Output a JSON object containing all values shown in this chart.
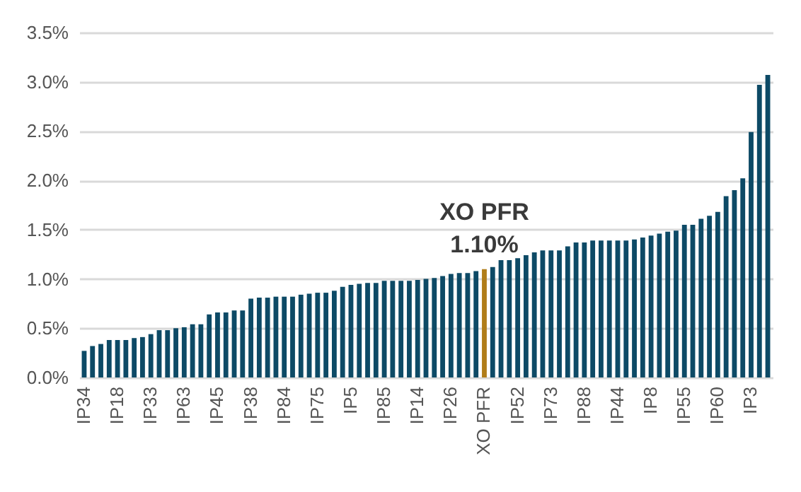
{
  "chart_data": {
    "type": "bar",
    "categories": [
      "IP34",
      null,
      null,
      null,
      "IP18",
      null,
      null,
      null,
      "IP33",
      null,
      null,
      null,
      "IP63",
      null,
      null,
      null,
      "IP45",
      null,
      null,
      null,
      "IP38",
      null,
      null,
      null,
      "IP84",
      null,
      null,
      null,
      "IP75",
      null,
      null,
      null,
      "IP5",
      null,
      null,
      null,
      "IP85",
      null,
      null,
      null,
      "IP14",
      null,
      null,
      null,
      "IP26",
      null,
      null,
      null,
      "XO PFR",
      null,
      null,
      null,
      "IP52",
      null,
      null,
      null,
      "IP73",
      null,
      null,
      null,
      "IP88",
      null,
      null,
      null,
      "IP44",
      null,
      null,
      null,
      "IP8",
      null,
      null,
      null,
      "IP55",
      null,
      null,
      null,
      "IP60",
      null,
      null,
      null,
      "IP3",
      null,
      null
    ],
    "values": [
      0.27,
      0.32,
      0.34,
      0.38,
      0.38,
      0.38,
      0.4,
      0.41,
      0.44,
      0.48,
      0.48,
      0.5,
      0.51,
      0.54,
      0.54,
      0.64,
      0.66,
      0.66,
      0.68,
      0.68,
      0.8,
      0.81,
      0.81,
      0.82,
      0.82,
      0.82,
      0.84,
      0.85,
      0.86,
      0.86,
      0.88,
      0.92,
      0.94,
      0.95,
      0.96,
      0.96,
      0.98,
      0.98,
      0.98,
      0.98,
      0.99,
      1.0,
      1.01,
      1.03,
      1.05,
      1.06,
      1.06,
      1.08,
      1.1,
      1.12,
      1.19,
      1.19,
      1.21,
      1.24,
      1.27,
      1.29,
      1.29,
      1.29,
      1.33,
      1.37,
      1.37,
      1.39,
      1.39,
      1.39,
      1.39,
      1.39,
      1.4,
      1.42,
      1.44,
      1.46,
      1.48,
      1.49,
      1.55,
      1.55,
      1.61,
      1.64,
      1.68,
      1.84,
      1.9,
      2.02,
      2.49,
      2.97,
      3.07
    ],
    "colors": [
      "#0d4a66",
      "#0d4a66",
      "#0d4a66",
      "#0d4a66",
      "#0d4a66",
      "#0d4a66",
      "#0d4a66",
      "#0d4a66",
      "#0d4a66",
      "#0d4a66",
      "#0d4a66",
      "#0d4a66",
      "#0d4a66",
      "#0d4a66",
      "#0d4a66",
      "#0d4a66",
      "#0d4a66",
      "#0d4a66",
      "#0d4a66",
      "#0d4a66",
      "#0d4a66",
      "#0d4a66",
      "#0d4a66",
      "#0d4a66",
      "#0d4a66",
      "#0d4a66",
      "#0d4a66",
      "#0d4a66",
      "#0d4a66",
      "#0d4a66",
      "#0d4a66",
      "#0d4a66",
      "#0d4a66",
      "#0d4a66",
      "#0d4a66",
      "#0d4a66",
      "#0d4a66",
      "#0d4a66",
      "#0d4a66",
      "#0d4a66",
      "#0d4a66",
      "#0d4a66",
      "#0d4a66",
      "#0d4a66",
      "#0d4a66",
      "#0d4a66",
      "#0d4a66",
      "#0d4a66",
      "#b07d1a",
      "#0d4a66",
      "#0d4a66",
      "#0d4a66",
      "#0d4a66",
      "#0d4a66",
      "#0d4a66",
      "#0d4a66",
      "#0d4a66",
      "#0d4a66",
      "#0d4a66",
      "#0d4a66",
      "#0d4a66",
      "#0d4a66",
      "#0d4a66",
      "#0d4a66",
      "#0d4a66",
      "#0d4a66",
      "#0d4a66",
      "#0d4a66",
      "#0d4a66",
      "#0d4a66",
      "#0d4a66",
      "#0d4a66",
      "#0d4a66",
      "#0d4a66",
      "#0d4a66",
      "#0d4a66",
      "#0d4a66",
      "#0d4a66",
      "#0d4a66",
      "#0d4a66",
      "#0d4a66",
      "#0d4a66",
      "#0d4a66"
    ],
    "value_labels": [
      null,
      null,
      null,
      null,
      null,
      null,
      null,
      null,
      null,
      null,
      null,
      null,
      null,
      null,
      null,
      null,
      null,
      null,
      null,
      null,
      null,
      null,
      null,
      null,
      null,
      null,
      null,
      null,
      null,
      null,
      null,
      null,
      null,
      null,
      null,
      null,
      null,
      null,
      null,
      null,
      null,
      null,
      null,
      null,
      null,
      null,
      null,
      null,
      "1.10%",
      null,
      null,
      null,
      null,
      null,
      null,
      null,
      null,
      null,
      null,
      null,
      null,
      null,
      null,
      null,
      null,
      null,
      null,
      null,
      null,
      null,
      null,
      null,
      null,
      null,
      null,
      null,
      null,
      null,
      null,
      null,
      null,
      null,
      null
    ],
    "annotations": [
      {
        "text": "XO PFR",
        "x": "XO PFR",
        "y": 1.1
      }
    ],
    "ylim": [
      0,
      3.5
    ],
    "yticks": [
      {
        "value": 0,
        "label": "0.0%"
      },
      {
        "value": 0.5,
        "label": "0.5%"
      },
      {
        "value": 1,
        "label": "1.0%"
      },
      {
        "value": 1.5,
        "label": "1.5%"
      },
      {
        "value": 2,
        "label": "2.0%"
      },
      {
        "value": 2.5,
        "label": "2.5%"
      },
      {
        "value": 3,
        "label": "3.0%"
      },
      {
        "value": 3.5,
        "label": "3.5%"
      }
    ],
    "grid": "y"
  }
}
